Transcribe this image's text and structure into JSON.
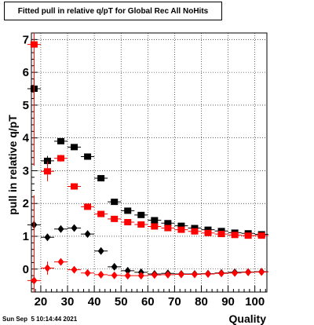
{
  "timestamp": "Sun Sep  5 10:14:44 2021",
  "chart_data": {
    "type": "scatter",
    "title": "Fitted pull in relative q/pT for Global Rec All NoHits",
    "xlabel": "Quality",
    "ylabel": "pull in relative q/pT",
    "xlim": [
      16.5,
      104.5
    ],
    "ylim": [
      -0.7,
      7.2
    ],
    "x_ticks": [
      20,
      30,
      40,
      50,
      60,
      70,
      80,
      90,
      100
    ],
    "x_tick_labels": [
      "20",
      "30",
      "40",
      "50",
      "60",
      "70",
      "80",
      "90",
      "100"
    ],
    "y_ticks": [
      0,
      1,
      2,
      3,
      4,
      5,
      6,
      7
    ],
    "y_tick_labels": [
      "0",
      "1",
      "2",
      "3",
      "4",
      "5",
      "6",
      "7"
    ],
    "grid": true,
    "series": [
      {
        "color": "#000000",
        "marker": "square",
        "x": [
          17.5,
          22.5,
          27.5,
          32.5,
          37.5,
          42.5,
          47.5,
          52.5,
          57.5,
          62.5,
          67.5,
          72.5,
          77.5,
          82.5,
          87.5,
          92.5,
          97.5,
          102.5
        ],
        "y": [
          5.5,
          3.3,
          3.9,
          3.72,
          3.43,
          2.77,
          2.05,
          1.78,
          1.65,
          1.49,
          1.4,
          1.32,
          1.25,
          1.2,
          1.16,
          1.11,
          1.09,
          1.06
        ],
        "err": [
          0.3,
          0.15,
          0.07,
          0.06,
          0.05,
          0.04,
          0.03,
          0.03,
          0.03,
          0.02,
          0.02,
          0.02,
          0.02,
          0.02,
          0.02,
          0.02,
          0.02,
          0.02
        ]
      },
      {
        "color": "#ff0000",
        "marker": "square",
        "x": [
          17.5,
          22.5,
          27.5,
          32.5,
          37.5,
          42.5,
          47.5,
          52.5,
          57.5,
          62.5,
          67.5,
          72.5,
          77.5,
          82.5,
          87.5,
          92.5,
          97.5,
          102.5
        ],
        "y": [
          6.85,
          2.98,
          3.38,
          2.52,
          1.9,
          1.68,
          1.53,
          1.43,
          1.36,
          1.3,
          1.25,
          1.2,
          1.15,
          1.1,
          1.07,
          1.04,
          1.02,
          1.02
        ],
        "err": [
          3.7,
          0.3,
          0.1,
          0.06,
          0.05,
          0.04,
          0.03,
          0.03,
          0.03,
          0.02,
          0.02,
          0.02,
          0.02,
          0.02,
          0.02,
          0.02,
          0.02,
          0.02
        ]
      },
      {
        "color": "#000000",
        "marker": "diamond",
        "x": [
          17.5,
          22.5,
          27.5,
          32.5,
          37.5,
          42.5,
          47.5,
          52.5,
          57.5,
          62.5,
          67.5,
          72.5,
          77.5,
          82.5,
          87.5,
          92.5,
          97.5,
          102.5
        ],
        "y": [
          1.35,
          0.97,
          1.22,
          1.25,
          1.07,
          0.55,
          0.07,
          -0.05,
          -0.1,
          -0.15,
          -0.13,
          -0.15,
          -0.15,
          -0.14,
          -0.12,
          -0.1,
          -0.09,
          -0.08
        ],
        "err": [
          0.15,
          0.08,
          0.05,
          0.04,
          0.03,
          0.03,
          0.02,
          0.02,
          0.02,
          0.02,
          0.02,
          0.02,
          0.02,
          0.02,
          0.02,
          0.02,
          0.02,
          0.02
        ]
      },
      {
        "color": "#ff0000",
        "marker": "diamond",
        "x": [
          17.5,
          22.5,
          27.5,
          32.5,
          37.5,
          42.5,
          47.5,
          52.5,
          57.5,
          62.5,
          67.5,
          72.5,
          77.5,
          82.5,
          87.5,
          92.5,
          97.5,
          102.5
        ],
        "y": [
          -0.35,
          0.03,
          0.22,
          -0.02,
          -0.12,
          -0.17,
          -0.19,
          -0.2,
          -0.2,
          -0.18,
          -0.17,
          -0.16,
          -0.16,
          -0.15,
          -0.13,
          -0.12,
          -0.1,
          -0.09
        ],
        "err": [
          2.6,
          0.2,
          0.06,
          0.04,
          0.03,
          0.03,
          0.02,
          0.02,
          0.02,
          0.02,
          0.02,
          0.02,
          0.02,
          0.02,
          0.02,
          0.02,
          0.02,
          0.02
        ]
      }
    ]
  }
}
